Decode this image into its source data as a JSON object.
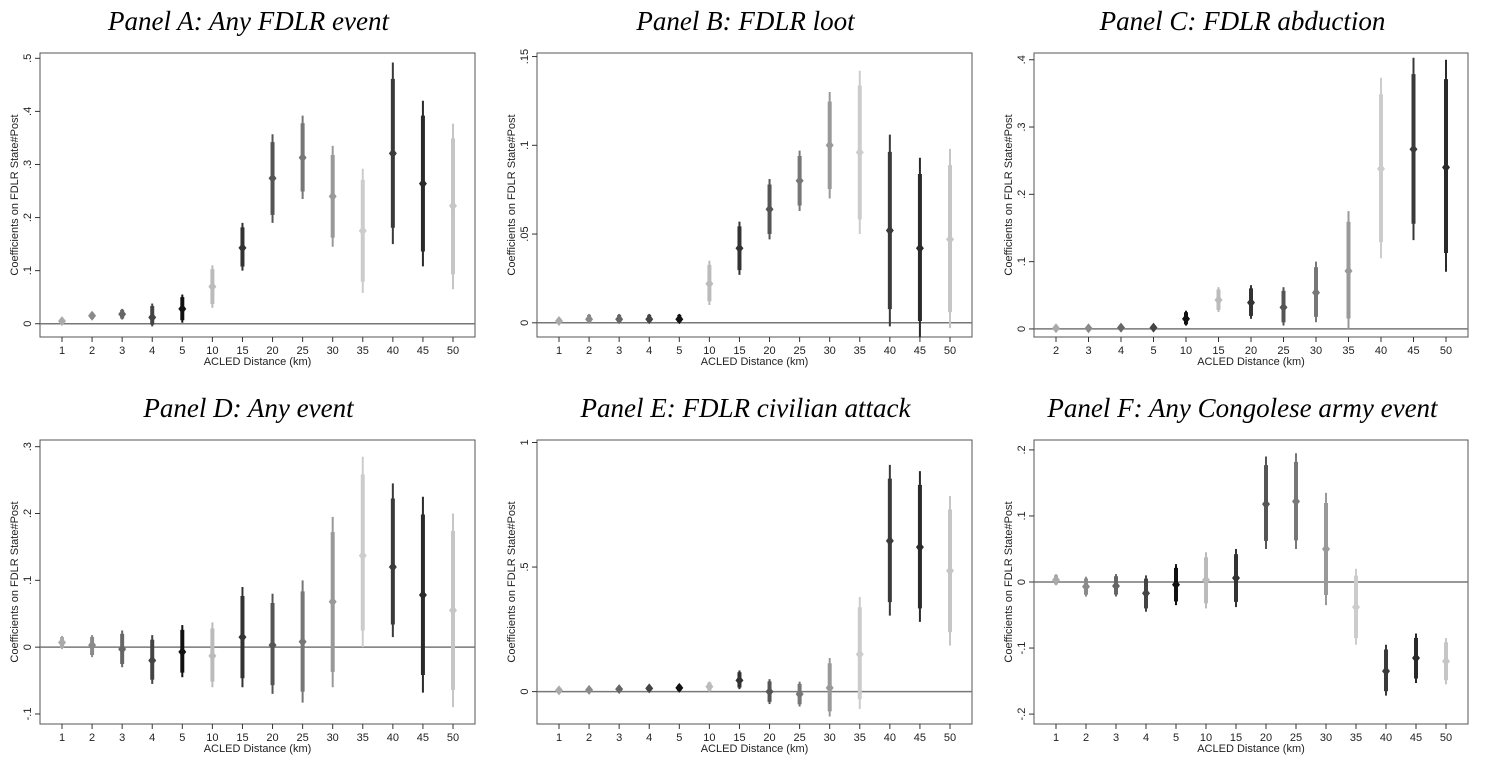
{
  "colors": {
    "frame": "#555555",
    "zero_line": "#777777",
    "shades": [
      "#aaaaaa",
      "#8a8a8a",
      "#666666",
      "#444444",
      "#111111",
      "#bbbbbb",
      "#333333",
      "#555555",
      "#777777",
      "#999999",
      "#cccccc",
      "#3a3a3a",
      "#2a2a2a",
      "#c6c6c6"
    ]
  },
  "chart_data": [
    {
      "type": "scatter",
      "title": "Panel A: Any FDLR event",
      "xlabel": "ACLED Distance (km)",
      "ylabel": "Coefficients on FDLR State#Post",
      "categories": [
        "1",
        "2",
        "3",
        "4",
        "5",
        "10",
        "15",
        "20",
        "25",
        "30",
        "35",
        "40",
        "45",
        "50"
      ],
      "values": [
        0.005,
        0.015,
        0.018,
        0.012,
        0.028,
        0.07,
        0.143,
        0.274,
        0.313,
        0.24,
        0.175,
        0.321,
        0.264,
        0.222
      ],
      "ci_lower": [
        0.002,
        0.008,
        0.008,
        -0.005,
        0.002,
        0.03,
        0.1,
        0.19,
        0.235,
        0.145,
        0.058,
        0.15,
        0.108,
        0.065
      ],
      "ci_upper": [
        0.009,
        0.022,
        0.028,
        0.038,
        0.055,
        0.11,
        0.19,
        0.357,
        0.392,
        0.335,
        0.292,
        0.492,
        0.42,
        0.377
      ],
      "yticks": [
        0,
        0.1,
        0.2,
        0.3,
        0.4,
        0.5
      ],
      "ytick_labels": [
        "0",
        ".1",
        ".2",
        ".3",
        ".4",
        ".5"
      ],
      "ylim": [
        -0.025,
        0.51
      ],
      "grid": false
    },
    {
      "type": "scatter",
      "title": "Panel B: FDLR loot",
      "xlabel": "ACLED Distance (km)",
      "ylabel": "Coefficients on FDLR State#Post",
      "categories": [
        "1",
        "2",
        "3",
        "4",
        "5",
        "10",
        "15",
        "20",
        "25",
        "30",
        "35",
        "40",
        "45",
        "50"
      ],
      "values": [
        0.001,
        0.002,
        0.002,
        0.002,
        0.002,
        0.022,
        0.042,
        0.064,
        0.08,
        0.1,
        0.096,
        0.052,
        0.042,
        0.047
      ],
      "ci_lower": [
        0.0,
        0.0,
        0.0,
        0.0,
        0.0,
        0.01,
        0.027,
        0.047,
        0.063,
        0.07,
        0.05,
        -0.002,
        -0.008,
        -0.003
      ],
      "ci_upper": [
        0.003,
        0.005,
        0.005,
        0.005,
        0.005,
        0.035,
        0.057,
        0.081,
        0.097,
        0.13,
        0.142,
        0.106,
        0.093,
        0.098
      ],
      "yticks": [
        0,
        0.05,
        0.1,
        0.15
      ],
      "ytick_labels": [
        "0",
        ".05",
        ".1",
        ".15"
      ],
      "ylim": [
        -0.008,
        0.152
      ],
      "grid": false
    },
    {
      "type": "scatter",
      "title": "Panel C: FDLR abduction",
      "xlabel": "ACLED Distance (km)",
      "ylabel": "Coefficients on FDLR State#Post",
      "categories": [
        "2",
        "3",
        "4",
        "5",
        "10",
        "15",
        "20",
        "25",
        "30",
        "35",
        "40",
        "45",
        "50"
      ],
      "values": [
        0.001,
        0.001,
        0.002,
        0.002,
        0.015,
        0.043,
        0.039,
        0.032,
        0.054,
        0.086,
        0.238,
        0.267,
        0.24
      ],
      "ci_lower": [
        0.0,
        0.0,
        0.0,
        0.0,
        0.005,
        0.025,
        0.015,
        0.005,
        0.01,
        0.0,
        0.105,
        0.132,
        0.085
      ],
      "ci_upper": [
        0.003,
        0.003,
        0.005,
        0.005,
        0.027,
        0.062,
        0.065,
        0.062,
        0.1,
        0.175,
        0.373,
        0.403,
        0.4
      ],
      "yticks": [
        0,
        0.1,
        0.2,
        0.3,
        0.4
      ],
      "ytick_labels": [
        "0",
        ".1",
        ".2",
        ".3",
        ".4"
      ],
      "ylim": [
        -0.012,
        0.41
      ],
      "grid": false
    },
    {
      "type": "scatter",
      "title": "Panel D: Any event",
      "xlabel": "ACLED Distance (km)",
      "ylabel": "Coefficients on FDLR State#Post",
      "categories": [
        "1",
        "2",
        "3",
        "4",
        "5",
        "10",
        "15",
        "20",
        "25",
        "30",
        "35",
        "40",
        "45",
        "50"
      ],
      "values": [
        0.007,
        0.003,
        -0.003,
        -0.02,
        -0.007,
        -0.013,
        0.015,
        0.003,
        0.008,
        0.068,
        0.137,
        0.12,
        0.078,
        0.055
      ],
      "ci_lower": [
        -0.003,
        -0.015,
        -0.03,
        -0.055,
        -0.045,
        -0.06,
        -0.06,
        -0.07,
        -0.083,
        -0.06,
        0.0,
        0.015,
        -0.068,
        -0.09
      ],
      "ci_upper": [
        0.017,
        0.018,
        0.025,
        0.018,
        0.033,
        0.037,
        0.09,
        0.08,
        0.1,
        0.195,
        0.285,
        0.245,
        0.225,
        0.2
      ],
      "yticks": [
        -0.1,
        0,
        0.1,
        0.2,
        0.3
      ],
      "ytick_labels": [
        "-.1",
        "0",
        ".1",
        ".2",
        ".3"
      ],
      "ylim": [
        -0.115,
        0.31
      ],
      "grid": false
    },
    {
      "type": "scatter",
      "title": "Panel E: FDLR civilian attack",
      "xlabel": "ACLED Distance (km)",
      "ylabel": "Coefficients on FDLR State#Post",
      "categories": [
        "1",
        "2",
        "3",
        "4",
        "5",
        "10",
        "15",
        "20",
        "25",
        "30",
        "35",
        "40",
        "45",
        "50"
      ],
      "values": [
        0.005,
        0.007,
        0.01,
        0.013,
        0.015,
        0.02,
        0.045,
        0.0,
        -0.01,
        0.015,
        0.15,
        0.605,
        0.58,
        0.485
      ],
      "ci_lower": [
        0.0,
        0.0,
        0.0,
        0.0,
        0.0,
        0.0,
        0.01,
        -0.05,
        -0.06,
        -0.1,
        -0.07,
        0.305,
        0.28,
        0.185
      ],
      "ci_upper": [
        0.01,
        0.015,
        0.02,
        0.025,
        0.03,
        0.04,
        0.085,
        0.05,
        0.04,
        0.135,
        0.38,
        0.91,
        0.885,
        0.785
      ],
      "yticks": [
        0,
        0.5,
        1
      ],
      "ytick_labels": [
        "0",
        ".5",
        "1"
      ],
      "ylim": [
        -0.13,
        1.01
      ],
      "grid": false
    },
    {
      "type": "scatter",
      "title": "Panel F: Any Congolese army event",
      "xlabel": "ACLED Distance (km)",
      "ylabel": "Coefficients on FDLR State#Post",
      "categories": [
        "1",
        "2",
        "3",
        "4",
        "5",
        "10",
        "15",
        "20",
        "25",
        "30",
        "35",
        "40",
        "45",
        "50"
      ],
      "values": [
        0.003,
        -0.007,
        -0.006,
        -0.017,
        -0.004,
        0.003,
        0.006,
        0.118,
        0.122,
        0.05,
        -0.038,
        -0.135,
        -0.115,
        -0.12
      ],
      "ci_lower": [
        -0.005,
        -0.022,
        -0.022,
        -0.045,
        -0.035,
        -0.04,
        -0.038,
        0.05,
        0.05,
        -0.035,
        -0.095,
        -0.172,
        -0.153,
        -0.155
      ],
      "ci_upper": [
        0.012,
        0.008,
        0.012,
        0.01,
        0.027,
        0.045,
        0.05,
        0.19,
        0.195,
        0.135,
        0.02,
        -0.095,
        -0.078,
        -0.085
      ],
      "yticks": [
        -0.2,
        -0.1,
        0,
        0.1,
        0.2
      ],
      "ytick_labels": [
        "-.2",
        "-.1",
        "0",
        ".1",
        ".2"
      ],
      "ylim": [
        -0.215,
        0.215
      ],
      "grid": false
    }
  ]
}
